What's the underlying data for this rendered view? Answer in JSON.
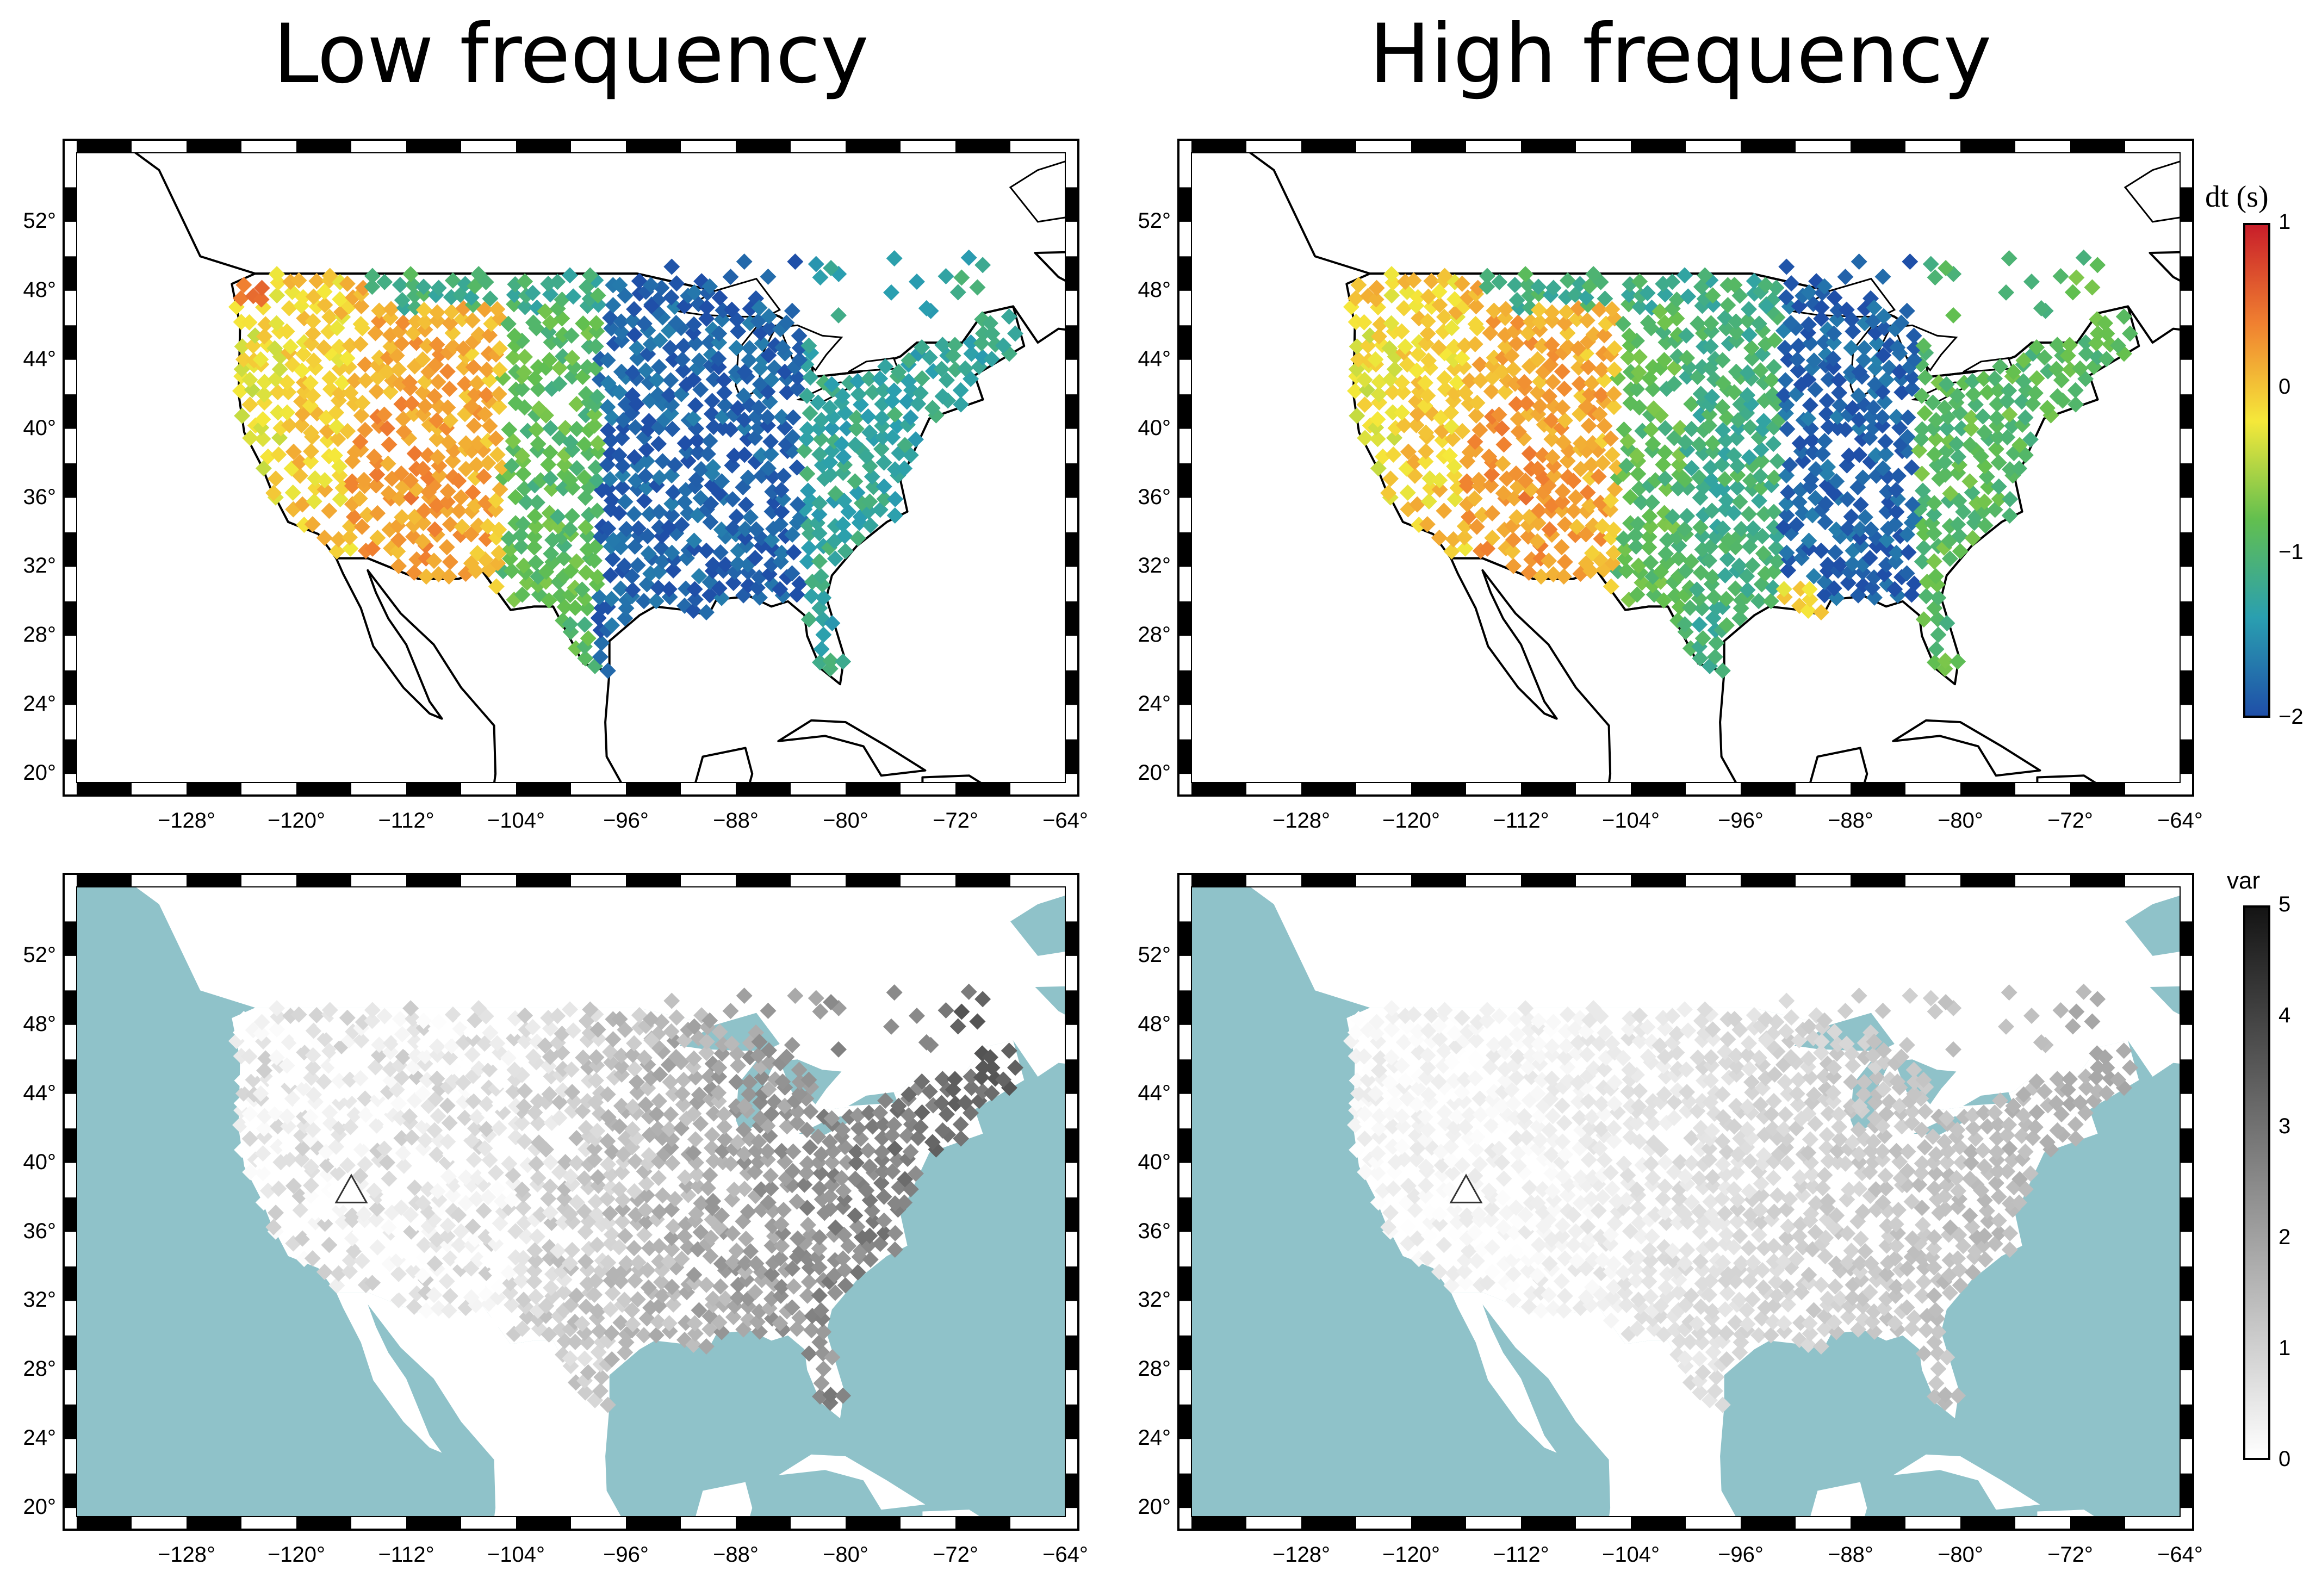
{
  "titles": {
    "left": "Low frequency",
    "right": "High frequency"
  },
  "axes": {
    "y_ticks": [
      "52°",
      "48°",
      "44°",
      "40°",
      "36°",
      "32°",
      "28°",
      "24°",
      "20°"
    ],
    "x_ticks": [
      "−128°",
      "−120°",
      "−112°",
      "−104°",
      "−96°",
      "−88°",
      "−80°",
      "−72°",
      "−64°"
    ]
  },
  "colorbar_dt": {
    "label": "dt (s)",
    "ticks": [
      "1",
      "0",
      "−1",
      "−2"
    ],
    "range": [
      -2,
      1
    ],
    "colors": [
      "#c81e2a",
      "#f08030",
      "#f5e83a",
      "#62bf4f",
      "#2a9fb0",
      "#1f4fa8"
    ]
  },
  "colorbar_var": {
    "label": "var",
    "ticks": [
      "5",
      "4",
      "3",
      "2",
      "1",
      "0"
    ],
    "range": [
      0,
      5
    ],
    "colors": [
      "#141414",
      "#ffffff"
    ]
  },
  "map_colors": {
    "water": "#8fc2c9",
    "coast": "#000000"
  },
  "panels": [
    {
      "id": "dt-low",
      "type": "dt"
    },
    {
      "id": "dt-high",
      "type": "dt"
    },
    {
      "id": "var-low",
      "type": "var"
    },
    {
      "id": "var-high",
      "type": "var"
    }
  ]
}
